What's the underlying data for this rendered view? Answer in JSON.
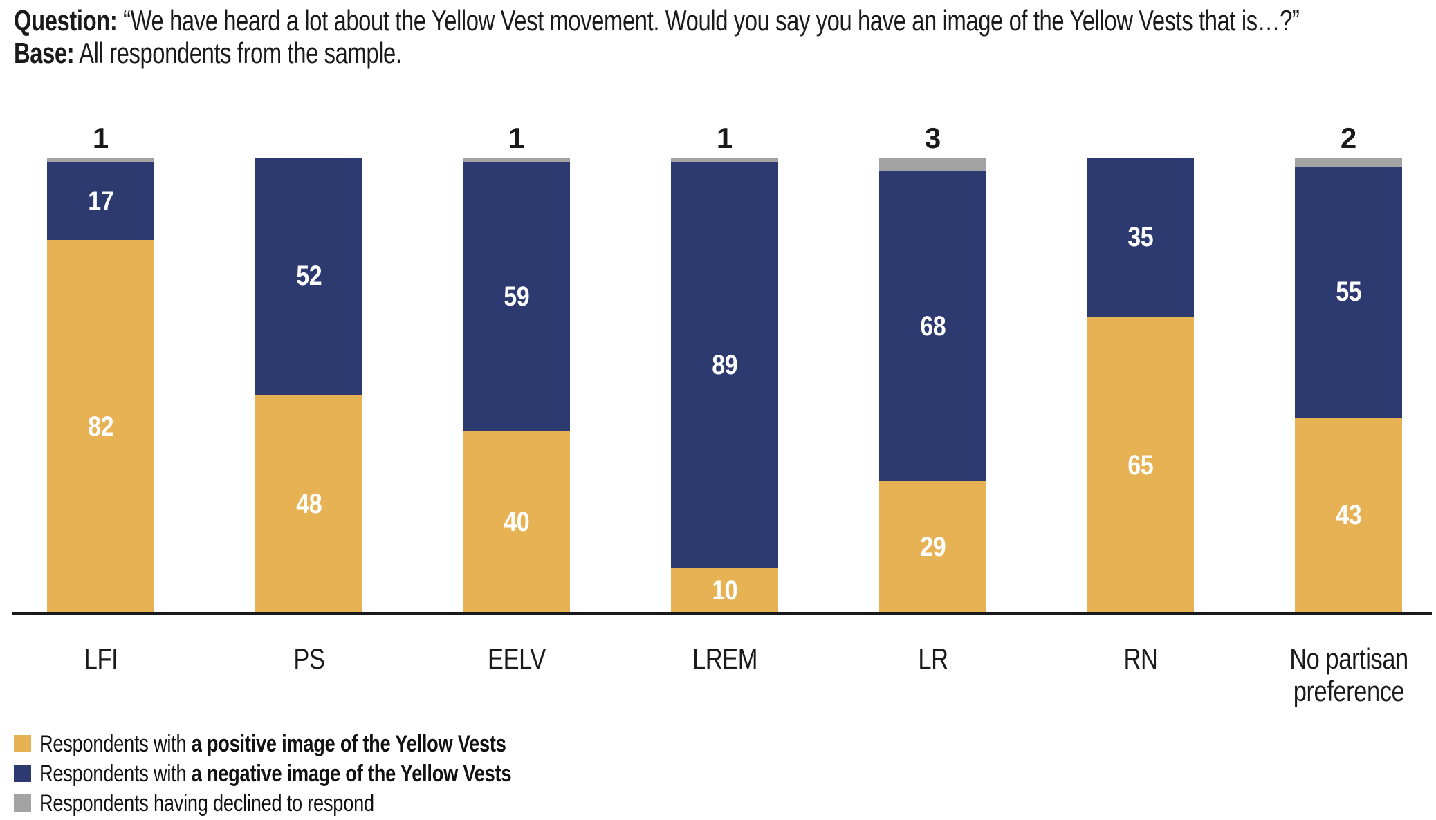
{
  "header": {
    "question_label": "Question:",
    "question_text": " “We have heard a lot about the Yellow Vest movement. Would you say you have an image of the Yellow Vests that is…?”",
    "base_label": "Base:",
    "base_text": " All respondents from the sample."
  },
  "chart_data": {
    "type": "bar",
    "stacked": true,
    "orientation": "vertical",
    "title": "",
    "xlabel": "",
    "ylabel": "",
    "ylim": [
      0,
      100
    ],
    "grid": false,
    "legend_position": "bottom-left",
    "value_label_style": "white numbers centered in segments; declined value printed in black above bar",
    "categories": [
      "LFI",
      "PS",
      "EELV",
      "LREM",
      "LR",
      "RN",
      "No partisan preference"
    ],
    "series": [
      {
        "name": "Respondents with a positive image of the Yellow Vests",
        "color": "#E6B254",
        "values": [
          82,
          48,
          40,
          10,
          29,
          65,
          43
        ]
      },
      {
        "name": "Respondents with a negative image of the Yellow Vests",
        "color": "#2D3A70",
        "values": [
          17,
          52,
          59,
          89,
          68,
          35,
          55
        ]
      },
      {
        "name": "Respondents having declined to respond",
        "color": "#A3A3A3",
        "values": [
          1,
          0,
          1,
          1,
          3,
          0,
          2
        ]
      }
    ]
  },
  "legend": {
    "items": [
      {
        "prefix": "Respondents with ",
        "bold": "a positive image of the Yellow Vests",
        "color": "#E6B254"
      },
      {
        "prefix": "Respondents with ",
        "bold": "a negative image of the Yellow Vests",
        "color": "#2D3A70"
      },
      {
        "prefix": "Respondents having declined to respond",
        "bold": "",
        "color": "#A3A3A3"
      }
    ]
  },
  "colors": {
    "positive": "#E6B254",
    "negative": "#2D3A70",
    "declined": "#A3A3A3",
    "axis": "#1A1A1A",
    "text": "#1A1A1A",
    "background": "#FFFFFF"
  }
}
